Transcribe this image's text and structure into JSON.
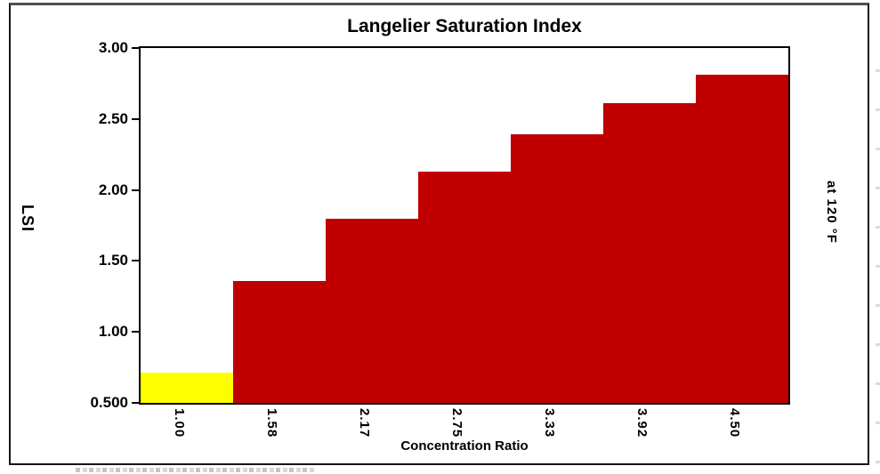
{
  "chart_data": {
    "type": "bar",
    "title": "Langelier Saturation Index",
    "xlabel": "Concentration Ratio",
    "ylabel": "LSI",
    "right_annotation": "at 120 °F",
    "categories": [
      "1.00",
      "1.58",
      "2.17",
      "2.75",
      "3.33",
      "3.92",
      "4.50"
    ],
    "values": [
      0.71,
      1.36,
      1.8,
      2.13,
      2.39,
      2.61,
      2.81
    ],
    "bar_colors": [
      "#ffff00",
      "#c00000",
      "#c00000",
      "#c00000",
      "#c00000",
      "#c00000",
      "#c00000"
    ],
    "y_ticks": [
      3.0,
      2.5,
      2.0,
      1.5,
      1.0,
      0.5
    ],
    "y_tick_labels": [
      "3.00",
      "2.50",
      "2.00",
      "1.50",
      "1.00",
      "0.500"
    ],
    "ylim": [
      0.5,
      3.0
    ],
    "bar_gap": 0,
    "grid": false,
    "legend": "none",
    "plot_bg": "#ffffff",
    "frame_border": "#161616"
  }
}
